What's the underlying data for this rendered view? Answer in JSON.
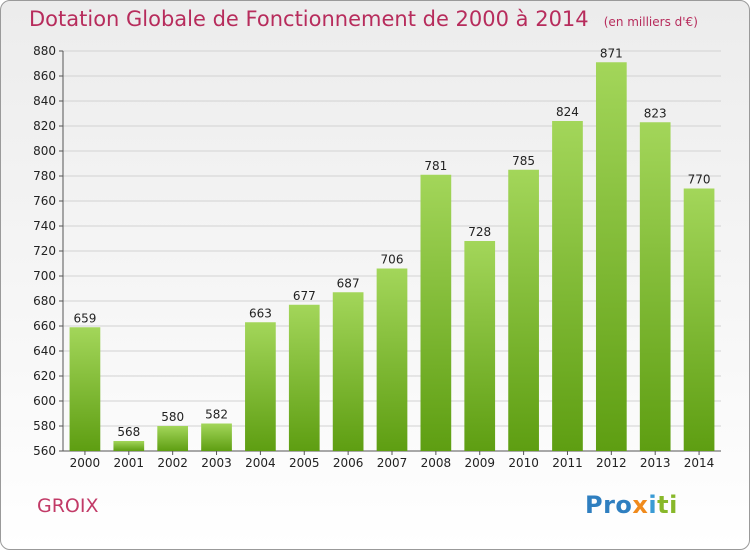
{
  "chart_data": {
    "type": "bar",
    "title": "Dotation Globale de Fonctionnement de 2000 à 2014",
    "unit_note": "(en milliers d'€)",
    "categories": [
      "2000",
      "2001",
      "2002",
      "2003",
      "2004",
      "2005",
      "2006",
      "2007",
      "2008",
      "2009",
      "2010",
      "2011",
      "2012",
      "2013",
      "2014"
    ],
    "values": [
      659,
      568,
      580,
      582,
      663,
      677,
      687,
      706,
      781,
      728,
      785,
      824,
      871,
      823,
      770
    ],
    "ylim": [
      560,
      880
    ],
    "yticks": [
      560,
      580,
      600,
      620,
      640,
      660,
      680,
      700,
      720,
      740,
      760,
      780,
      800,
      820,
      840,
      860,
      880
    ],
    "grid": true,
    "bar_color_top": "#a3d65a",
    "bar_color_bottom": "#5e9e12"
  },
  "footer": {
    "commune": "GROIX",
    "logo_parts": [
      "Pro",
      "x",
      "i",
      "ti"
    ]
  }
}
